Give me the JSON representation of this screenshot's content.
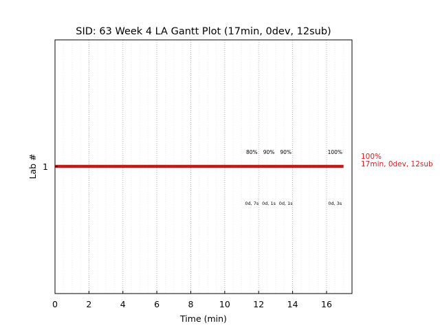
{
  "chart_data": {
    "type": "gantt",
    "title": "SID: 63 Week 4 LA Gantt Plot (17min, 0dev, 12sub)",
    "xlabel": "Time (min)",
    "ylabel": "Lab #",
    "xlim": [
      0,
      17.5
    ],
    "xticks": [
      "0",
      "2",
      "4",
      "6",
      "8",
      "10",
      "12",
      "14",
      "16"
    ],
    "ytick": "1",
    "grid": true,
    "bar_color": "#c01a1a",
    "bars": [
      {
        "lab": "1",
        "start": 0,
        "end": 17
      }
    ],
    "annotations_top": [
      {
        "x": 11.6,
        "text": "80%"
      },
      {
        "x": 12.6,
        "text": "90%"
      },
      {
        "x": 13.6,
        "text": "90%"
      },
      {
        "x": 16.5,
        "text": "100%"
      }
    ],
    "annotations_bottom": [
      {
        "x": 11.6,
        "text": "0d, 7s"
      },
      {
        "x": 12.6,
        "text": "0d, 1s"
      },
      {
        "x": 13.6,
        "text": "0d, 1s"
      },
      {
        "x": 16.5,
        "text": "0d, 3s"
      }
    ],
    "side_label": {
      "line1": "100%",
      "line2": "17min, 0dev, 12sub",
      "color": "#cc2222"
    }
  }
}
